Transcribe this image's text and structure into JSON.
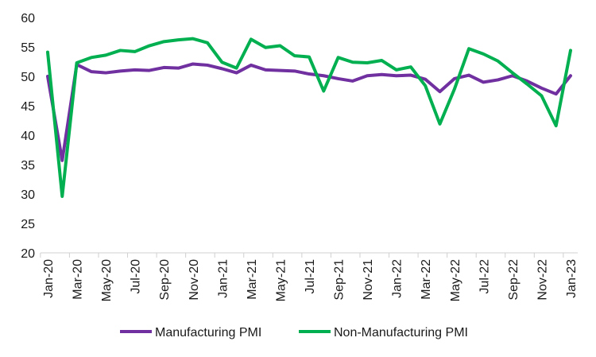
{
  "chart_data": {
    "type": "line",
    "title": "",
    "xlabel": "",
    "ylabel": "",
    "ylim": [
      20,
      60
    ],
    "yticks": [
      20,
      25,
      30,
      35,
      40,
      45,
      50,
      55,
      60
    ],
    "grid": false,
    "legend_position": "bottom",
    "x": [
      "Jan-20",
      "Feb-20",
      "Mar-20",
      "Apr-20",
      "May-20",
      "Jun-20",
      "Jul-20",
      "Aug-20",
      "Sep-20",
      "Oct-20",
      "Nov-20",
      "Dec-20",
      "Jan-21",
      "Feb-21",
      "Mar-21",
      "Apr-21",
      "May-21",
      "Jun-21",
      "Jul-21",
      "Aug-21",
      "Sep-21",
      "Oct-21",
      "Nov-21",
      "Dec-21",
      "Jan-22",
      "Feb-22",
      "Mar-22",
      "Apr-22",
      "May-22",
      "Jun-22",
      "Jul-22",
      "Aug-22",
      "Sep-22",
      "Oct-22",
      "Nov-22",
      "Dec-22",
      "Jan-23"
    ],
    "x_tick_labels": [
      "Jan-20",
      "Mar-20",
      "May-20",
      "Jul-20",
      "Sep-20",
      "Nov-20",
      "Jan-21",
      "Mar-21",
      "May-21",
      "Jul-21",
      "Sep-21",
      "Nov-21",
      "Jan-22",
      "Mar-22",
      "May-22",
      "Jul-22",
      "Sep-22",
      "Nov-22",
      "Jan-23"
    ],
    "series": [
      {
        "name": "Manufacturing PMI",
        "color": "#7030A0",
        "values": [
          50.0,
          35.7,
          52.0,
          50.8,
          50.6,
          50.9,
          51.1,
          51.0,
          51.5,
          51.4,
          52.1,
          51.9,
          51.3,
          50.6,
          51.9,
          51.1,
          51.0,
          50.9,
          50.4,
          50.1,
          49.6,
          49.2,
          50.1,
          50.3,
          50.1,
          50.2,
          49.5,
          47.4,
          49.6,
          50.2,
          49.0,
          49.4,
          50.1,
          49.2,
          48.0,
          47.0,
          50.1
        ]
      },
      {
        "name": "Non-Manufacturing PMI",
        "color": "#00B050",
        "values": [
          54.1,
          29.6,
          52.3,
          53.2,
          53.6,
          54.4,
          54.2,
          55.2,
          55.9,
          56.2,
          56.4,
          55.7,
          52.4,
          51.4,
          56.3,
          54.9,
          55.2,
          53.5,
          53.3,
          47.5,
          53.2,
          52.4,
          52.3,
          52.7,
          51.1,
          51.6,
          48.4,
          41.9,
          47.8,
          54.7,
          53.8,
          52.6,
          50.6,
          48.7,
          46.7,
          41.6,
          54.4
        ]
      }
    ]
  }
}
